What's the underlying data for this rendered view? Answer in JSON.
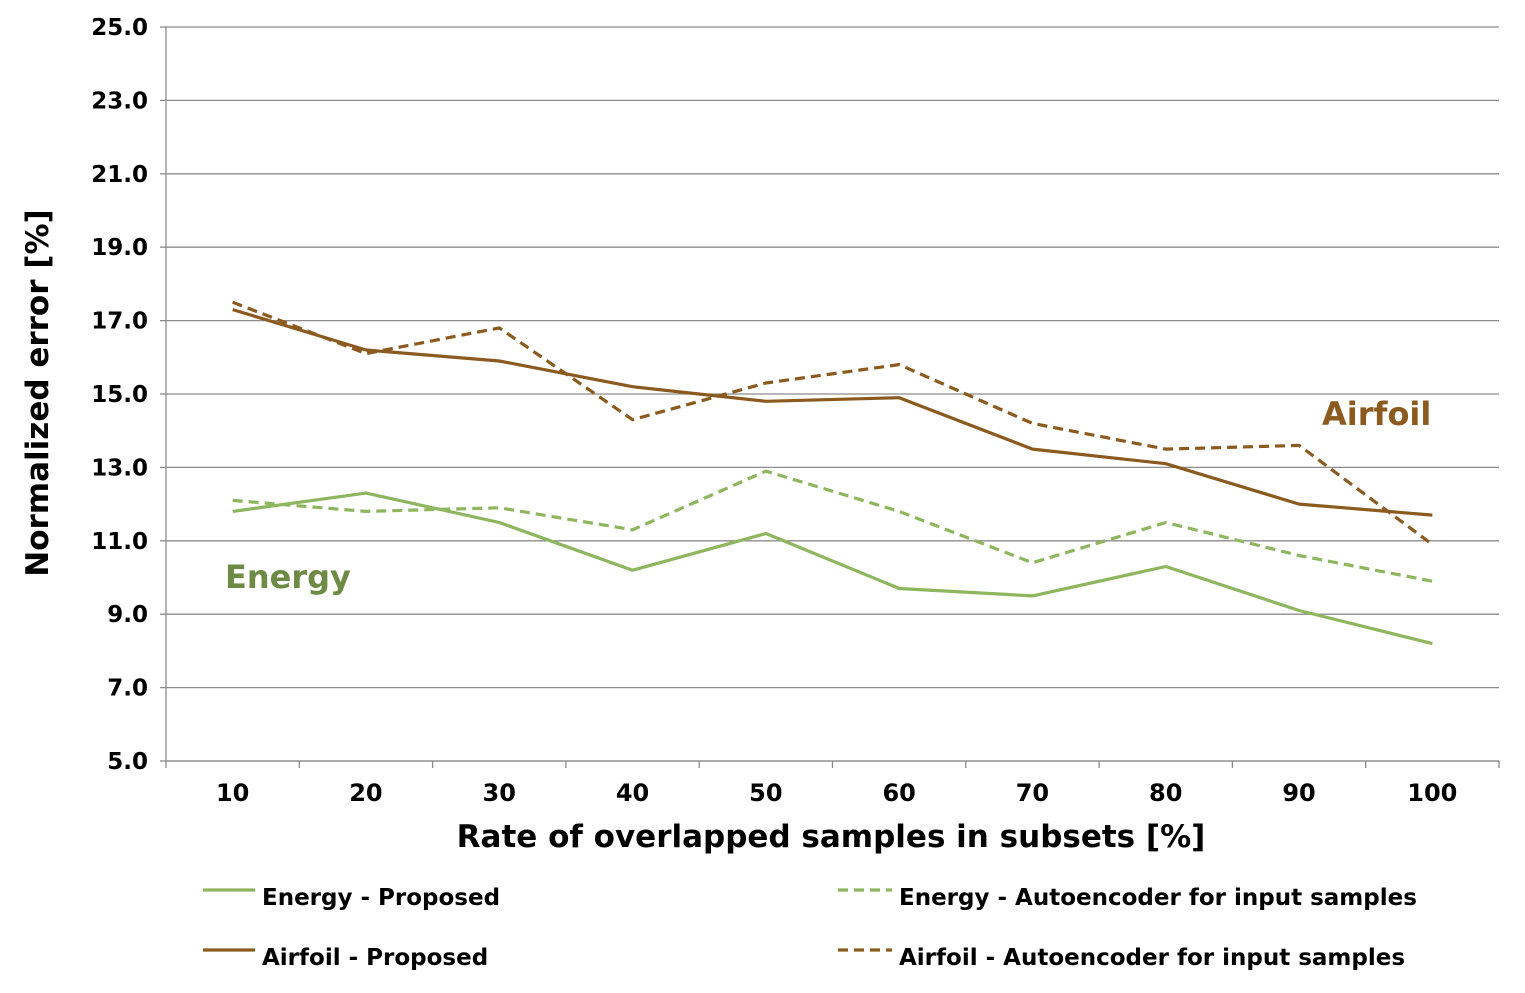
{
  "chart_data": {
    "type": "line",
    "title": "",
    "xlabel": "Rate of overlapped samples in subsets [%]",
    "ylabel": "Normalized error [%]",
    "categories": [
      "10",
      "20",
      "30",
      "40",
      "50",
      "60",
      "70",
      "80",
      "90",
      "100"
    ],
    "ylim": [
      5.0,
      25.0
    ],
    "yticks": [
      "5.0",
      "7.0",
      "9.0",
      "11.0",
      "13.0",
      "15.0",
      "17.0",
      "19.0",
      "21.0",
      "23.0",
      "25.0"
    ],
    "grid": true,
    "legend_position": "bottom",
    "series": [
      {
        "name": "Energy - Proposed",
        "color": "#8DB65E",
        "dash": "solid",
        "values": [
          11.8,
          12.3,
          11.5,
          10.2,
          11.2,
          9.7,
          9.5,
          10.3,
          9.1,
          8.2
        ]
      },
      {
        "name": "Energy - Autoencoder for input samples",
        "color": "#8DB65E",
        "dash": "dashed",
        "values": [
          12.1,
          11.8,
          11.9,
          11.3,
          12.9,
          11.8,
          10.4,
          11.5,
          10.6,
          9.9
        ]
      },
      {
        "name": "Airfoil - Proposed",
        "color": "#8B5A1E",
        "dash": "solid",
        "values": [
          17.3,
          16.2,
          15.9,
          15.2,
          14.8,
          14.9,
          13.5,
          13.1,
          12.0,
          11.7
        ]
      },
      {
        "name": "Airfoil - Autoencoder for input samples",
        "color": "#8B5A1E",
        "dash": "dashed",
        "values": [
          17.5,
          16.1,
          16.8,
          14.3,
          15.3,
          15.8,
          14.2,
          13.5,
          13.6,
          10.9
        ]
      }
    ],
    "annotations": [
      {
        "text": "Airfoil",
        "color": "#8B5A1E"
      },
      {
        "text": "Energy",
        "color": "#6E8B45"
      }
    ]
  }
}
